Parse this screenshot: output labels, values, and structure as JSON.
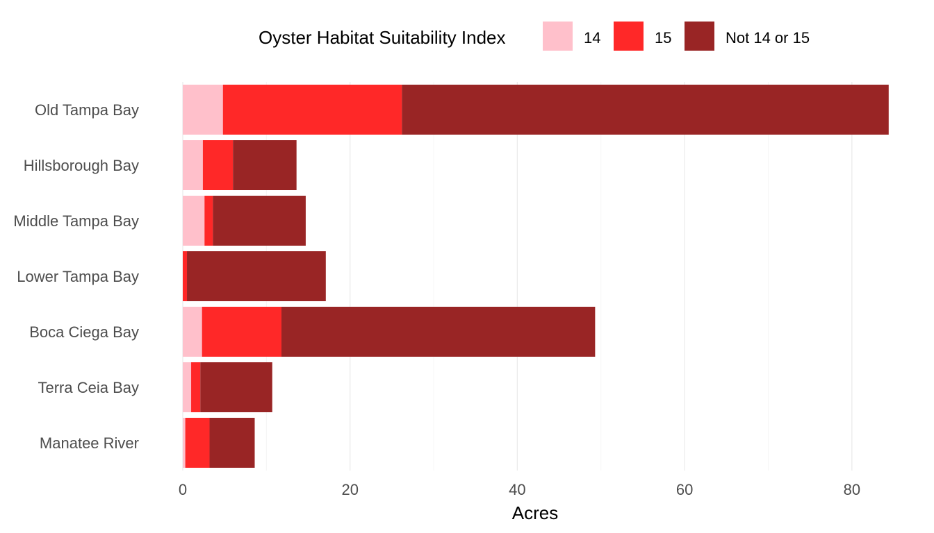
{
  "chart_data": {
    "type": "bar",
    "orientation": "horizontal",
    "stacked": true,
    "xlabel": "Acres",
    "ylabel": "",
    "xlim": [
      0,
      84.5
    ],
    "xticks": [
      0,
      20,
      40,
      60,
      80
    ],
    "grid": true,
    "legend": {
      "title": "Oyster Habitat Suitability Index",
      "placement": "top"
    },
    "categories": [
      "Old Tampa Bay",
      "Hillsborough Bay",
      "Middle Tampa Bay",
      "Lower Tampa Bay",
      "Boca Ciega Bay",
      "Terra Ceia Bay",
      "Manatee River"
    ],
    "series": [
      {
        "name": "14",
        "color": "#ffc0cb",
        "values": [
          4.8,
          2.4,
          2.6,
          0.0,
          2.3,
          1.0,
          0.3
        ]
      },
      {
        "name": "15",
        "color": "#ff2828",
        "values": [
          21.4,
          3.6,
          1.0,
          0.5,
          9.5,
          1.1,
          2.9
        ]
      },
      {
        "name": "Not 14 or 15",
        "color": "#992525",
        "values": [
          58.2,
          7.6,
          11.1,
          16.6,
          37.5,
          8.6,
          5.4
        ]
      }
    ]
  }
}
